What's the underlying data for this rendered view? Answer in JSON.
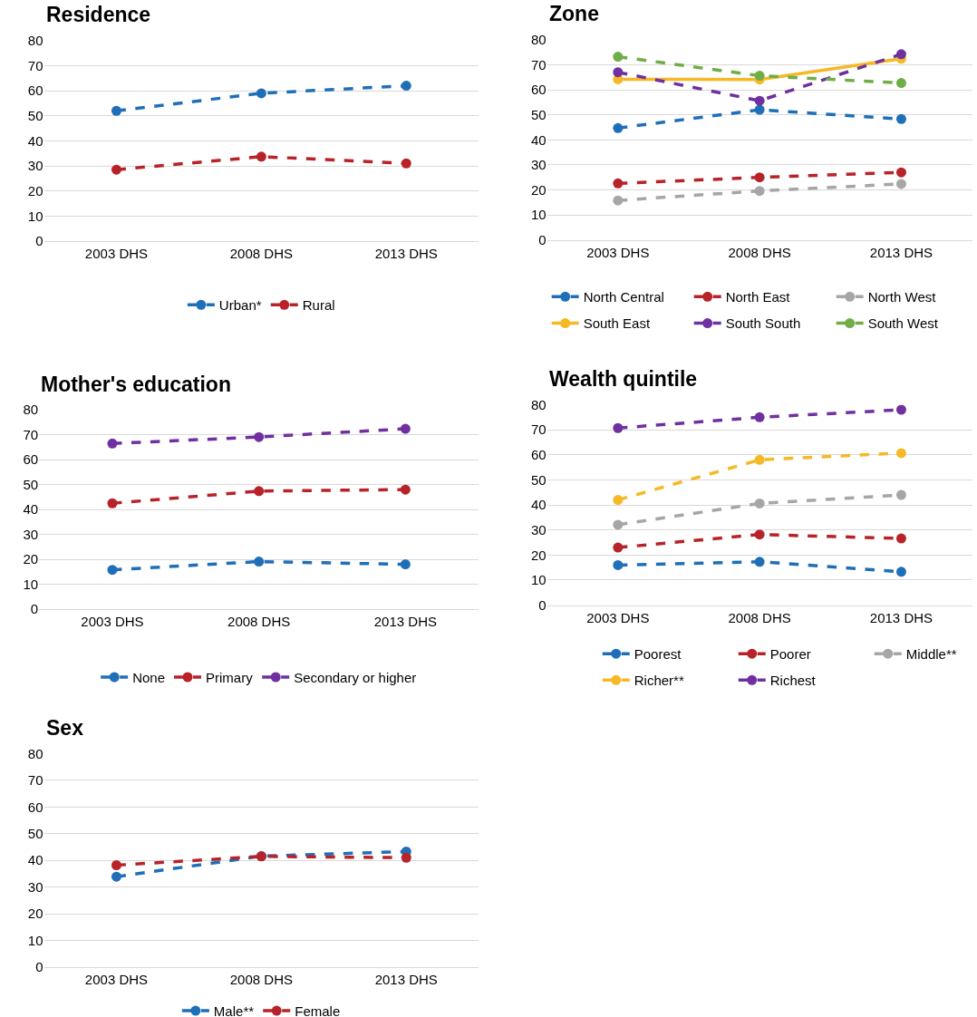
{
  "chart_data": [
    {
      "type": "line",
      "title": "Residence",
      "categories": [
        "2003 DHS",
        "2008 DHS",
        "2013 DHS"
      ],
      "ylim": [
        0,
        80
      ],
      "yticks": [
        0,
        10,
        20,
        30,
        40,
        50,
        60,
        70,
        80
      ],
      "grid": "y",
      "legend": "bottom",
      "marker": "circle",
      "line_style": "dashed",
      "series": [
        {
          "name": "Urban*",
          "color": "#1f6fb8",
          "values": [
            52,
            59,
            62
          ]
        },
        {
          "name": "Rural",
          "color": "#b8232a",
          "values": [
            28.5,
            33.7,
            31
          ]
        }
      ]
    },
    {
      "type": "line",
      "title": "Zone",
      "categories": [
        "2003 DHS",
        "2008 DHS",
        "2013 DHS"
      ],
      "ylim": [
        0,
        80
      ],
      "yticks": [
        0,
        10,
        20,
        30,
        40,
        50,
        60,
        70,
        80
      ],
      "grid": "y",
      "legend": "bottom",
      "marker": "circle",
      "line_style": "dashed",
      "series": [
        {
          "name": "North Central",
          "color": "#1f6fb8",
          "values": [
            44.7,
            52,
            48.3
          ]
        },
        {
          "name": "North East",
          "color": "#b8232a",
          "values": [
            22.6,
            25,
            27
          ]
        },
        {
          "name": "North West",
          "color": "#a6a6a6",
          "values": [
            15.8,
            19.6,
            22.4
          ]
        },
        {
          "name": "South East",
          "color": "#f5b926",
          "values": [
            64.2,
            64.1,
            72.4
          ],
          "line_style": "solid"
        },
        {
          "name": "South South",
          "color": "#7030a0",
          "values": [
            67,
            55.6,
            74.2
          ]
        },
        {
          "name": "South West",
          "color": "#70ad47",
          "values": [
            73.2,
            65.6,
            62.7
          ]
        }
      ]
    },
    {
      "type": "line",
      "title": "Mother's education",
      "categories": [
        "2003 DHS",
        "2008 DHS",
        "2013 DHS"
      ],
      "ylim": [
        0,
        80
      ],
      "yticks": [
        0,
        10,
        20,
        30,
        40,
        50,
        60,
        70,
        80
      ],
      "grid": "y",
      "legend": "bottom",
      "marker": "circle",
      "line_style": "dashed",
      "series": [
        {
          "name": "None",
          "color": "#1f6fb8",
          "values": [
            15.8,
            19.1,
            18
          ]
        },
        {
          "name": "Primary",
          "color": "#b8232a",
          "values": [
            42.5,
            47.4,
            48
          ]
        },
        {
          "name": "Secondary or higher",
          "color": "#7030a0",
          "values": [
            66.5,
            69.1,
            72.4
          ]
        }
      ]
    },
    {
      "type": "line",
      "title": "Wealth quintile",
      "categories": [
        "2003 DHS",
        "2008 DHS",
        "2013 DHS"
      ],
      "ylim": [
        0,
        80
      ],
      "yticks": [
        0,
        10,
        20,
        30,
        40,
        50,
        60,
        70,
        80
      ],
      "grid": "y",
      "legend": "bottom",
      "marker": "circle",
      "line_style": "dashed",
      "series": [
        {
          "name": "Poorest",
          "color": "#1f6fb8",
          "values": [
            16,
            17.3,
            13.3
          ]
        },
        {
          "name": "Poorer",
          "color": "#b8232a",
          "values": [
            23,
            28.2,
            26.6
          ]
        },
        {
          "name": "Middle**",
          "color": "#a6a6a6",
          "values": [
            32.1,
            40.6,
            44
          ]
        },
        {
          "name": "Richer**",
          "color": "#f5b926",
          "values": [
            42,
            58,
            60.7
          ]
        },
        {
          "name": "Richest",
          "color": "#7030a0",
          "values": [
            70.7,
            75,
            78
          ]
        }
      ]
    },
    {
      "type": "line",
      "title": "Sex",
      "categories": [
        "2003 DHS",
        "2008 DHS",
        "2013 DHS"
      ],
      "ylim": [
        0,
        80
      ],
      "yticks": [
        0,
        10,
        20,
        30,
        40,
        50,
        60,
        70,
        80
      ],
      "grid": "y",
      "legend": "bottom",
      "marker": "circle",
      "line_style": "dashed",
      "series": [
        {
          "name": "Male**",
          "color": "#1f6fb8",
          "values": [
            33.9,
            41.6,
            43.3
          ]
        },
        {
          "name": "Female",
          "color": "#b8232a",
          "values": [
            38.2,
            41.5,
            41
          ]
        }
      ]
    }
  ]
}
